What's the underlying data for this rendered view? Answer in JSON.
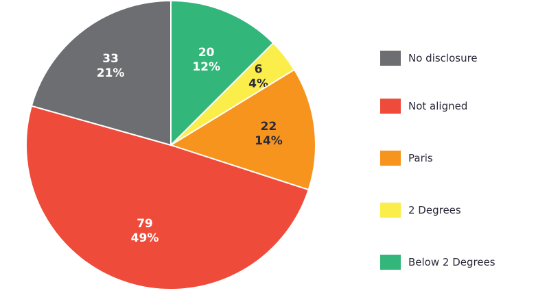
{
  "chart_data": {
    "type": "pie",
    "title": "",
    "start": "top, clockwise",
    "slices": [
      {
        "name": "Below 2 Degrees",
        "value": 20,
        "percent": "12%",
        "color": "#33b679",
        "label_color": "#ffffff"
      },
      {
        "name": "2 Degrees",
        "value": 6,
        "percent": "4%",
        "color": "#fcee4a",
        "label_color": "#2b2b3a"
      },
      {
        "name": "Paris",
        "value": 22,
        "percent": "14%",
        "color": "#f7941e",
        "label_color": "#2b2b3a"
      },
      {
        "name": "Not aligned",
        "value": 79,
        "percent": "49%",
        "color": "#ef4b3b",
        "label_color": "#ffffff"
      },
      {
        "name": "No disclosure",
        "value": 33,
        "percent": "21%",
        "color": "#6d6e71",
        "label_color": "#ffffff"
      }
    ],
    "legend": {
      "placement": "right",
      "order": [
        "No disclosure",
        "Not aligned",
        "Paris",
        "2 Degrees",
        "Below 2 Degrees"
      ]
    }
  }
}
